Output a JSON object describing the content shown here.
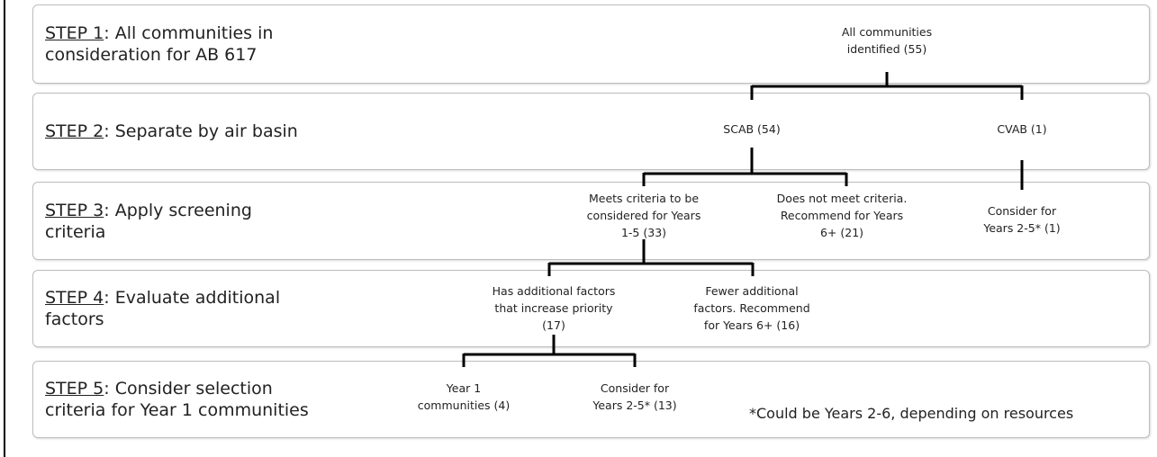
{
  "steps": [
    {
      "label": "STEP 1",
      "lines": [
        ": All communities in",
        "consideration for AB 617"
      ]
    },
    {
      "label": "STEP 2",
      "lines": [
        ": Separate by air basin"
      ]
    },
    {
      "label": "STEP 3",
      "lines": [
        ": Apply screening",
        "criteria"
      ]
    },
    {
      "label": "STEP 4",
      "lines": [
        ": Evaluate additional",
        "factors"
      ]
    },
    {
      "label": "STEP 5",
      "lines": [
        ": Consider selection",
        "criteria for Year 1 communities"
      ]
    }
  ],
  "nodes": [
    {
      "lines": [
        "All communities",
        "identified (55)"
      ]
    },
    {
      "lines": [
        "SCAB (54)"
      ]
    },
    {
      "lines": [
        "CVAB (1)"
      ]
    },
    {
      "lines": [
        "Meets criteria to be",
        "considered for Years",
        "1-5 (33)"
      ]
    },
    {
      "lines": [
        "Does not meet criteria.",
        "Recommend for Years",
        "6+ (21)"
      ]
    },
    {
      "lines": [
        "Consider for",
        "Years 2-5* (1)"
      ]
    },
    {
      "lines": [
        "Has additional factors",
        "that increase priority",
        "(17)"
      ]
    },
    {
      "lines": [
        "Fewer additional",
        "factors. Recommend",
        "for Years 6+ (16)"
      ]
    },
    {
      "lines": [
        "Year 1",
        "communities (4)"
      ]
    },
    {
      "lines": [
        "Consider for",
        "Years 2-5* (13)"
      ]
    }
  ],
  "note": "*Could be Years 2-6, depending on resources"
}
